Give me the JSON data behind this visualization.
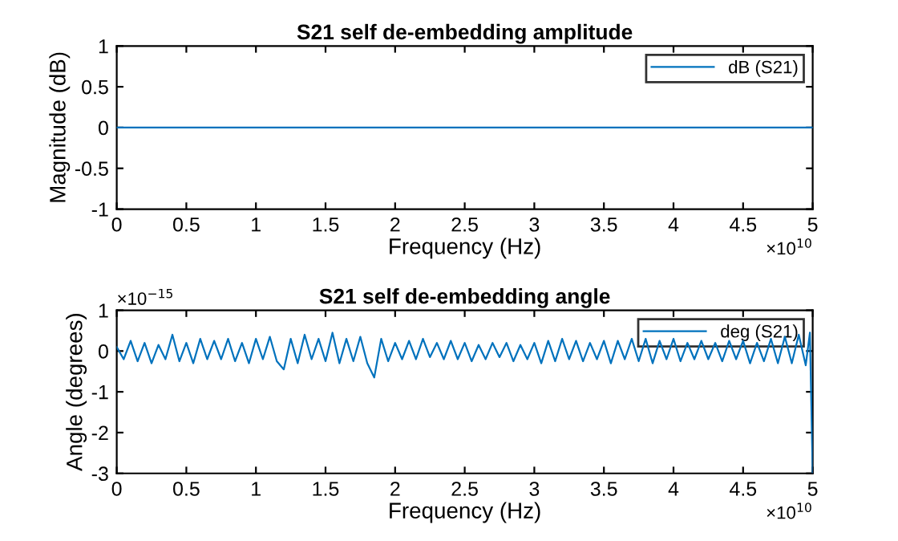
{
  "chart_data": [
    {
      "type": "line",
      "title": "S21 self de-embedding amplitude",
      "xlabel": "Frequency (Hz)",
      "ylabel": "Magnitude (dB)",
      "x": [
        0,
        5
      ],
      "series": [
        {
          "name": "dB (S21)",
          "color": "#0072bd",
          "values": [
            0,
            0
          ]
        }
      ],
      "xlim": [
        0,
        5
      ],
      "xticks": [
        0,
        0.5,
        1,
        1.5,
        2,
        2.5,
        3,
        3.5,
        4,
        4.5,
        5
      ],
      "ylim": [
        -1,
        1
      ],
      "yticks": [
        -1,
        -0.5,
        0,
        0.5,
        1
      ],
      "annotations": [
        "×10$^{10}$"
      ],
      "legend": "top right",
      "grid": false
    },
    {
      "type": "line",
      "title": "S21 self de-embedding angle",
      "xlabel": "Frequency (Hz)",
      "ylabel": "Angle (degrees)",
      "x": [
        0,
        0.05,
        0.1,
        0.15,
        0.2,
        0.25,
        0.3,
        0.35,
        0.4,
        0.45,
        0.5,
        0.55,
        0.6,
        0.65,
        0.7,
        0.75,
        0.8,
        0.85,
        0.9,
        0.95,
        1,
        1.05,
        1.1,
        1.15,
        1.2,
        1.25,
        1.3,
        1.35,
        1.4,
        1.45,
        1.5,
        1.55,
        1.6,
        1.65,
        1.7,
        1.75,
        1.8,
        1.85,
        1.9,
        1.95,
        2,
        2.05,
        2.1,
        2.15,
        2.2,
        2.25,
        2.3,
        2.35,
        2.4,
        2.45,
        2.5,
        2.55,
        2.6,
        2.65,
        2.7,
        2.75,
        2.8,
        2.85,
        2.9,
        2.95,
        3,
        3.05,
        3.1,
        3.15,
        3.2,
        3.25,
        3.3,
        3.35,
        3.4,
        3.45,
        3.5,
        3.55,
        3.6,
        3.65,
        3.7,
        3.75,
        3.8,
        3.85,
        3.9,
        3.95,
        4,
        4.05,
        4.1,
        4.15,
        4.2,
        4.25,
        4.3,
        4.35,
        4.4,
        4.45,
        4.5,
        4.55,
        4.6,
        4.65,
        4.7,
        4.75,
        4.8,
        4.85,
        4.9,
        4.95,
        4.98,
        5
      ],
      "series": [
        {
          "name": "deg (S21)",
          "color": "#0072bd",
          "values": [
            0.1,
            -0.2,
            0.25,
            -0.25,
            0.2,
            -0.3,
            0.15,
            -0.2,
            0.4,
            -0.25,
            0.2,
            -0.3,
            0.3,
            -0.2,
            0.25,
            -0.2,
            0.3,
            -0.25,
            0.2,
            -0.3,
            0.3,
            -0.2,
            0.35,
            -0.25,
            -0.45,
            0.3,
            -0.3,
            0.4,
            -0.2,
            0.3,
            -0.25,
            0.45,
            -0.3,
            0.3,
            -0.25,
            0.35,
            -0.3,
            -0.65,
            0.3,
            -0.25,
            0.2,
            -0.2,
            0.25,
            -0.2,
            0.3,
            -0.15,
            0.2,
            -0.2,
            0.25,
            -0.2,
            0.2,
            -0.25,
            0.15,
            -0.2,
            0.2,
            -0.15,
            0.2,
            -0.25,
            0.15,
            -0.2,
            0.2,
            -0.3,
            0.25,
            -0.25,
            0.3,
            -0.2,
            0.25,
            -0.25,
            0.2,
            -0.2,
            0.25,
            -0.3,
            0.25,
            -0.2,
            0.3,
            -0.25,
            0.3,
            -0.3,
            0.25,
            -0.2,
            0.3,
            -0.25,
            0.2,
            -0.2,
            0.25,
            -0.2,
            0.2,
            -0.25,
            0.25,
            -0.2,
            0.25,
            -0.3,
            0.2,
            -0.25,
            0.3,
            -0.3,
            0.35,
            -0.3,
            0.4,
            -0.35,
            0.45,
            -3
          ]
        }
      ],
      "xlim": [
        0,
        5
      ],
      "xticks": [
        0,
        0.5,
        1,
        1.5,
        2,
        2.5,
        3,
        3.5,
        4,
        4.5,
        5
      ],
      "ylim": [
        -3,
        1
      ],
      "yticks": [
        -3,
        -2,
        -1,
        0,
        1
      ],
      "annotations": [
        "×10$^{10}$",
        "×10$^{−15}$"
      ],
      "legend": "top right",
      "grid": false
    }
  ]
}
